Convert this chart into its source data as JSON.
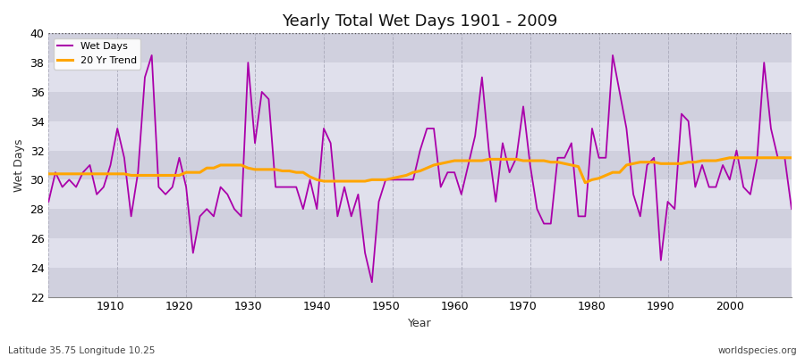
{
  "title": "Yearly Total Wet Days 1901 - 2009",
  "ylabel": "Wet Days",
  "xlabel": "Year",
  "bottom_left_label": "Latitude 35.75 Longitude 10.25",
  "bottom_right_label": "worldspecies.org",
  "ylim": [
    22,
    40
  ],
  "yticks": [
    22,
    24,
    26,
    28,
    30,
    32,
    34,
    36,
    38,
    40
  ],
  "fig_bg_color": "#ffffff",
  "plot_bg_color": "#dcdce8",
  "wet_days_color": "#aa00aa",
  "trend_color": "#FFA500",
  "wet_days_lw": 1.3,
  "trend_lw": 2.2,
  "years": [
    1901,
    1902,
    1903,
    1904,
    1905,
    1906,
    1907,
    1908,
    1909,
    1910,
    1911,
    1912,
    1913,
    1914,
    1915,
    1916,
    1917,
    1918,
    1919,
    1920,
    1921,
    1922,
    1923,
    1924,
    1925,
    1926,
    1927,
    1928,
    1929,
    1930,
    1931,
    1932,
    1933,
    1934,
    1935,
    1936,
    1937,
    1938,
    1939,
    1940,
    1941,
    1942,
    1943,
    1944,
    1945,
    1946,
    1947,
    1948,
    1949,
    1950,
    1951,
    1952,
    1953,
    1954,
    1955,
    1956,
    1957,
    1958,
    1959,
    1960,
    1961,
    1962,
    1963,
    1964,
    1965,
    1966,
    1967,
    1968,
    1969,
    1970,
    1971,
    1972,
    1973,
    1974,
    1975,
    1976,
    1977,
    1978,
    1979,
    1980,
    1981,
    1982,
    1983,
    1984,
    1985,
    1986,
    1987,
    1988,
    1989,
    1990,
    1991,
    1992,
    1993,
    1994,
    1995,
    1996,
    1997,
    1998,
    1999,
    2000,
    2001,
    2002,
    2003,
    2004,
    2005,
    2006,
    2007,
    2008,
    2009
  ],
  "wet_days": [
    28.5,
    30.5,
    29.5,
    30.0,
    29.5,
    30.5,
    31.0,
    29.0,
    29.5,
    31.0,
    33.5,
    31.5,
    27.5,
    30.5,
    37.0,
    38.5,
    29.5,
    29.0,
    29.5,
    31.5,
    29.5,
    25.0,
    27.5,
    28.0,
    27.5,
    29.5,
    29.0,
    28.0,
    27.5,
    38.0,
    32.5,
    36.0,
    35.5,
    29.5,
    29.5,
    29.5,
    29.5,
    28.0,
    30.0,
    28.0,
    33.5,
    32.5,
    27.5,
    29.5,
    27.5,
    29.0,
    25.0,
    23.0,
    28.5,
    30.0,
    30.0,
    30.0,
    30.0,
    30.0,
    32.0,
    33.5,
    33.5,
    29.5,
    30.5,
    30.5,
    29.0,
    31.0,
    33.0,
    37.0,
    32.0,
    28.5,
    32.5,
    30.5,
    31.5,
    35.0,
    31.0,
    28.0,
    27.0,
    27.0,
    31.5,
    31.5,
    32.5,
    27.5,
    27.5,
    33.5,
    31.5,
    31.5,
    38.5,
    36.0,
    33.5,
    29.0,
    27.5,
    31.0,
    31.5,
    24.5,
    28.5,
    28.0,
    34.5,
    34.0,
    29.5,
    31.0,
    29.5,
    29.5,
    31.0,
    30.0,
    32.0,
    29.5,
    29.0,
    31.5,
    38.0,
    33.5,
    31.5,
    31.5,
    28.0
  ],
  "trend": [
    30.4,
    30.4,
    30.4,
    30.4,
    30.4,
    30.4,
    30.4,
    30.4,
    30.4,
    30.4,
    30.4,
    30.4,
    30.3,
    30.3,
    30.3,
    30.3,
    30.3,
    30.3,
    30.3,
    30.3,
    30.5,
    30.5,
    30.5,
    30.8,
    30.8,
    31.0,
    31.0,
    31.0,
    31.0,
    30.8,
    30.7,
    30.7,
    30.7,
    30.7,
    30.6,
    30.6,
    30.5,
    30.5,
    30.2,
    30.0,
    29.9,
    29.9,
    29.9,
    29.9,
    29.9,
    29.9,
    29.9,
    30.0,
    30.0,
    30.0,
    30.1,
    30.2,
    30.3,
    30.5,
    30.6,
    30.8,
    31.0,
    31.1,
    31.2,
    31.3,
    31.3,
    31.3,
    31.3,
    31.3,
    31.4,
    31.4,
    31.4,
    31.4,
    31.4,
    31.3,
    31.3,
    31.3,
    31.3,
    31.2,
    31.2,
    31.1,
    31.0,
    30.9,
    29.8,
    30.0,
    30.1,
    30.3,
    30.5,
    30.5,
    31.0,
    31.1,
    31.2,
    31.2,
    31.2,
    31.1,
    31.1,
    31.1,
    31.1,
    31.2,
    31.2,
    31.3,
    31.3,
    31.3,
    31.4,
    31.5,
    31.5,
    31.5,
    31.5,
    31.5,
    31.5,
    31.5,
    31.5,
    31.5,
    31.5
  ],
  "stripe_color_dark": "#d0d0de",
  "stripe_color_light": "#e0e0ec"
}
